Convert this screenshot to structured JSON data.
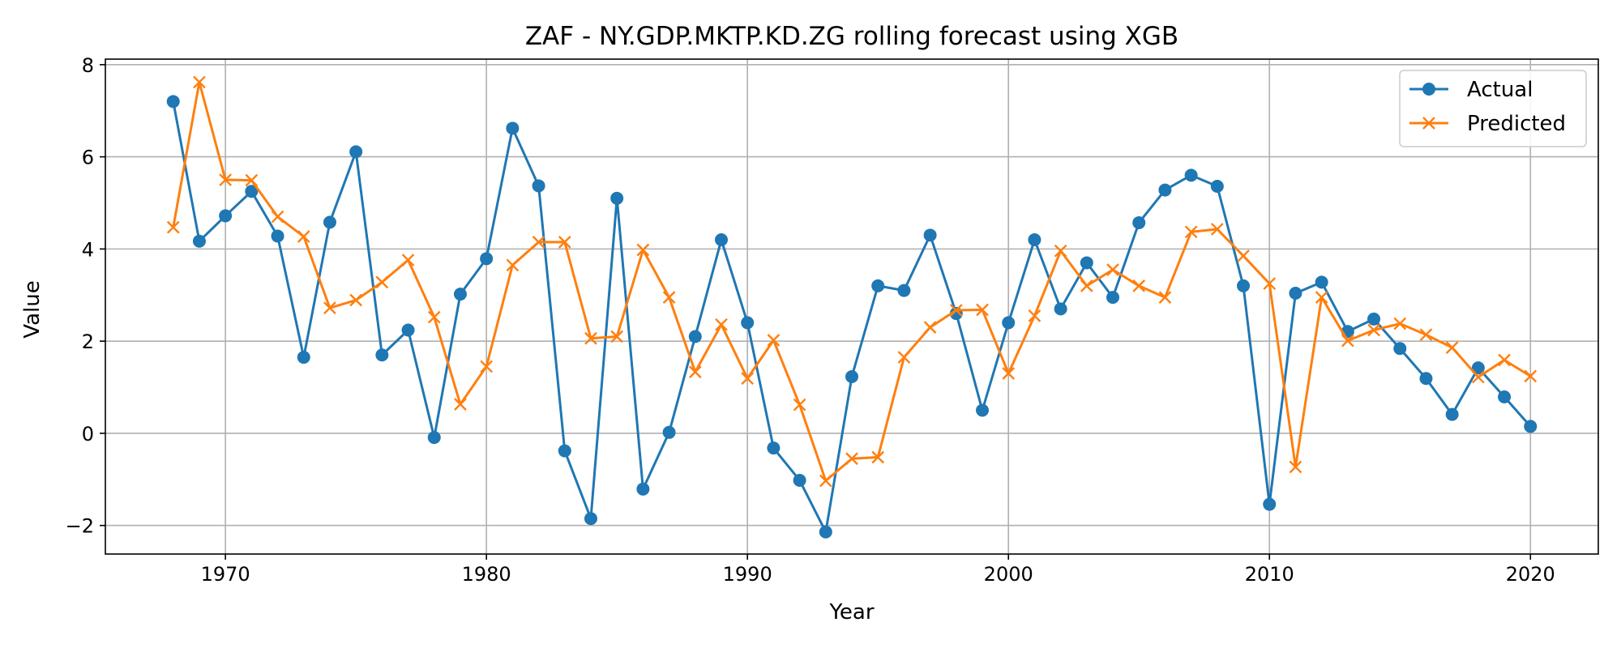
{
  "chart_data": {
    "type": "line",
    "title": "ZAF - NY.GDP.MKTP.KD.ZG rolling forecast using XGB",
    "xlabel": "Year",
    "ylabel": "Value",
    "xlim": [
      1965.4,
      2022.6
    ],
    "ylim": [
      -2.62,
      8.12
    ],
    "xticks": [
      1970,
      1980,
      1990,
      2000,
      2010,
      2020
    ],
    "yticks": [
      -2,
      0,
      2,
      4,
      6,
      8
    ],
    "ytick_labels": [
      "−2",
      "0",
      "2",
      "4",
      "6",
      "8"
    ],
    "grid": true,
    "legend_position": "top-right",
    "x": [
      1968,
      1969,
      1970,
      1971,
      1972,
      1973,
      1974,
      1975,
      1976,
      1977,
      1978,
      1979,
      1980,
      1981,
      1982,
      1983,
      1984,
      1985,
      1986,
      1987,
      1988,
      1989,
      1990,
      1991,
      1992,
      1993,
      1994,
      1995,
      1996,
      1997,
      1998,
      1999,
      2000,
      2001,
      2002,
      2003,
      2004,
      2005,
      2006,
      2007,
      2008,
      2009,
      2010,
      2011,
      2012,
      2013,
      2014,
      2015,
      2016,
      2017,
      2018,
      2019,
      2020
    ],
    "series": [
      {
        "name": "Actual",
        "color": "#1f77b4",
        "marker": "circle",
        "values": [
          7.2,
          4.17,
          4.72,
          5.25,
          4.28,
          1.65,
          4.58,
          6.11,
          1.7,
          2.24,
          -0.09,
          3.02,
          3.79,
          6.62,
          5.37,
          -0.38,
          -1.85,
          5.1,
          -1.21,
          0.02,
          2.1,
          4.2,
          2.4,
          -0.32,
          -1.02,
          -2.14,
          1.23,
          3.2,
          3.1,
          4.3,
          2.6,
          0.5,
          2.4,
          4.2,
          2.7,
          3.7,
          2.95,
          4.57,
          5.28,
          5.6,
          5.36,
          3.2,
          -1.54,
          3.04,
          3.28,
          2.21,
          2.48,
          1.84,
          1.19,
          0.41,
          1.42,
          0.79,
          0.15
        ]
      },
      {
        "name": "Predicted",
        "color": "#ff7f0e",
        "marker": "x",
        "values": [
          4.47,
          7.62,
          5.5,
          5.49,
          4.7,
          4.27,
          2.72,
          2.89,
          3.28,
          3.76,
          2.52,
          0.63,
          1.45,
          3.65,
          4.15,
          4.15,
          2.06,
          2.1,
          3.98,
          2.95,
          1.33,
          2.36,
          1.19,
          2.02,
          0.62,
          -1.03,
          -0.55,
          -0.52,
          1.65,
          2.3,
          2.67,
          2.68,
          1.3,
          2.55,
          3.96,
          3.2,
          3.55,
          3.2,
          2.95,
          4.37,
          4.43,
          3.85,
          3.25,
          -0.73,
          2.95,
          2.01,
          2.24,
          2.38,
          2.14,
          1.86,
          1.22,
          1.59,
          1.24
        ]
      }
    ]
  }
}
